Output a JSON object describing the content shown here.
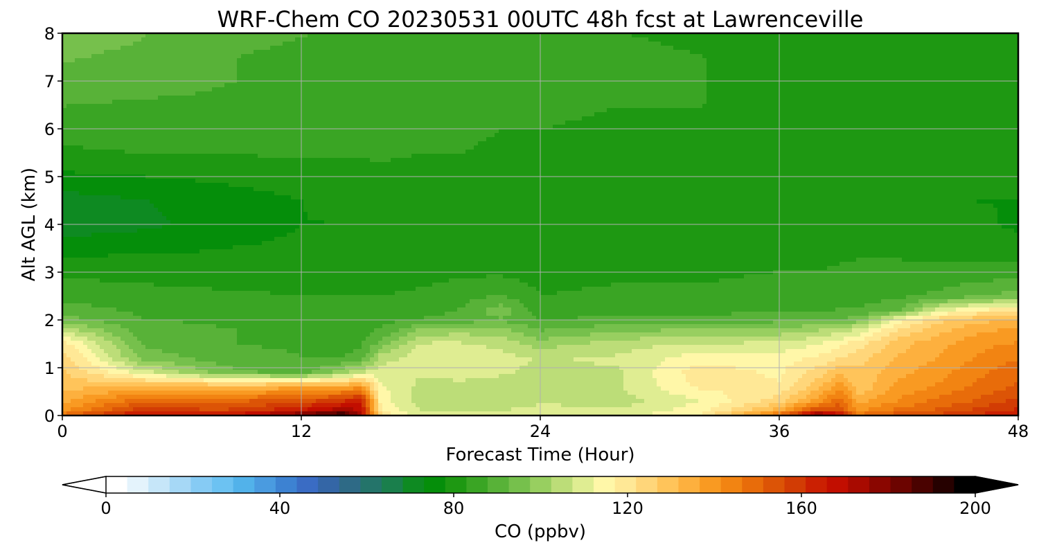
{
  "chart_data": {
    "type": "heatmap",
    "title": "WRF-Chem CO  20230531 00UTC 48h fcst at Lawrenceville",
    "xlabel": "Forecast Time (Hour)",
    "ylabel": "Alt AGL (km)",
    "xlim": [
      0,
      48
    ],
    "ylim": [
      0,
      8
    ],
    "xticks": [
      0,
      12,
      24,
      36,
      48
    ],
    "yticks": [
      0,
      1,
      2,
      3,
      4,
      5,
      6,
      7,
      8
    ],
    "grid": true,
    "colorbar": {
      "label": "CO  (ppbv)",
      "min": 0,
      "max": 200,
      "ticks": [
        0,
        40,
        80,
        120,
        160,
        200
      ],
      "extend": "both",
      "colors": [
        "#ffffff",
        "#e4f3fc",
        "#c6e6f9",
        "#a6d8f6",
        "#86cbf4",
        "#6cc2f2",
        "#52b2ea",
        "#4a9be0",
        "#3d82d2",
        "#3a6cc4",
        "#3466a6",
        "#2e6a86",
        "#24746a",
        "#1a7f4c",
        "#0e8a22",
        "#058e0a",
        "#1e9812",
        "#3aa524",
        "#58b238",
        "#76c04c",
        "#98cf60",
        "#bcdd78",
        "#dfed92",
        "#fff7a8",
        "#ffe896",
        "#ffd67a",
        "#ffc45a",
        "#fdb03e",
        "#f99a22",
        "#f28412",
        "#e86c0a",
        "#dc5406",
        "#d23c04",
        "#cb2002",
        "#c20e00",
        "#a80a00",
        "#8a0600",
        "#6c0400",
        "#4a0200",
        "#260100",
        "#000000"
      ]
    },
    "grid_values": {
      "x": [
        0,
        4,
        8,
        12,
        14,
        15,
        16,
        18,
        20,
        22,
        24,
        28,
        32,
        36,
        38,
        39,
        40,
        42,
        44,
        46,
        48
      ],
      "y": [
        0,
        0.1,
        0.3,
        0.6,
        0.9,
        1.2,
        1.5,
        1.8,
        2.0,
        2.2,
        2.5,
        3.0,
        3.5,
        4.0,
        4.5,
        5.0,
        5.5,
        6.0,
        6.5,
        7.0,
        7.5,
        8.0
      ],
      "z": [
        [
          150,
          170,
          165,
          185,
          196,
          172,
          122,
          110,
          110,
          110,
          113,
          110,
          118,
          150,
          185,
          170,
          150,
          155,
          158,
          162,
          165
        ],
        [
          140,
          160,
          156,
          166,
          175,
          170,
          118,
          107,
          107,
          107,
          110,
          108,
          115,
          135,
          158,
          155,
          140,
          148,
          152,
          158,
          162
        ],
        [
          135,
          150,
          150,
          154,
          160,
          165,
          115,
          105,
          105,
          104,
          106,
          105,
          112,
          125,
          140,
          150,
          135,
          142,
          148,
          152,
          158
        ],
        [
          130,
          133,
          133,
          135,
          137,
          140,
          113,
          106,
          106,
          105,
          107,
          107,
          118,
          118,
          130,
          140,
          128,
          138,
          142,
          148,
          152
        ],
        [
          128,
          110,
          95,
          90,
          100,
          107,
          110,
          108,
          109,
          108,
          106,
          107,
          120,
          116,
          125,
          130,
          128,
          135,
          140,
          145,
          150
        ],
        [
          125,
          96,
          90,
          88,
          88,
          90,
          105,
          110,
          111,
          109,
          107,
          108,
          115,
          115,
          118,
          122,
          125,
          132,
          137,
          142,
          146
        ],
        [
          120,
          92,
          88,
          87,
          86,
          87,
          95,
          108,
          108,
          106,
          100,
          105,
          108,
          108,
          112,
          116,
          120,
          130,
          135,
          140,
          142
        ],
        [
          105,
          90,
          88,
          87,
          86,
          86,
          88,
          98,
          100,
          99,
          92,
          96,
          98,
          99,
          102,
          104,
          108,
          122,
          130,
          135,
          138
        ],
        [
          95,
          88,
          87,
          86,
          85,
          85,
          86,
          88,
          90,
          92,
          88,
          89,
          90,
          91,
          92,
          93,
          95,
          115,
          125,
          130,
          132
        ],
        [
          90,
          87,
          86,
          85,
          84,
          84,
          85,
          86,
          88,
          96,
          85,
          86,
          86,
          87,
          87,
          88,
          88,
          92,
          110,
          118,
          120
        ],
        [
          86,
          85,
          84,
          83,
          83,
          83,
          83,
          84,
          86,
          88,
          83,
          84,
          84,
          85,
          85,
          86,
          86,
          87,
          89,
          92,
          95
        ],
        [
          82,
          81,
          80,
          80,
          80,
          80,
          80,
          81,
          82,
          82,
          81,
          82,
          82,
          83,
          83,
          84,
          84,
          84,
          84,
          85,
          85
        ],
        [
          76,
          77,
          78,
          79,
          79,
          79,
          79,
          80,
          80,
          80,
          80,
          80,
          80,
          81,
          81,
          81,
          82,
          82,
          81,
          81,
          80
        ],
        [
          70,
          72,
          75,
          78,
          78,
          78,
          79,
          79,
          79,
          79,
          80,
          79,
          79,
          79,
          79,
          79,
          80,
          80,
          79,
          79,
          77
        ],
        [
          71,
          73,
          76,
          78,
          79,
          79,
          79,
          79,
          79,
          79,
          80,
          79,
          79,
          79,
          79,
          79,
          79,
          79,
          79,
          78,
          78
        ],
        [
          77,
          78,
          79,
          80,
          80,
          80,
          81,
          81,
          81,
          80,
          80,
          81,
          81,
          80,
          80,
          80,
          80,
          80,
          80,
          79,
          79
        ],
        [
          82,
          83,
          83,
          84,
          84,
          84,
          84,
          83,
          83,
          82,
          82,
          82,
          81,
          81,
          81,
          81,
          81,
          81,
          80,
          80,
          80
        ],
        [
          85,
          86,
          86,
          86,
          86,
          86,
          85,
          84,
          84,
          83,
          83,
          82,
          82,
          82,
          81,
          81,
          81,
          80,
          80,
          80,
          80
        ],
        [
          88,
          87,
          87,
          87,
          86,
          86,
          85,
          85,
          85,
          84,
          84,
          83,
          83,
          82,
          82,
          82,
          81,
          81,
          80,
          80,
          80
        ],
        [
          92,
          90,
          88,
          87,
          86,
          86,
          86,
          86,
          86,
          85,
          85,
          84,
          83,
          82,
          82,
          82,
          81,
          81,
          81,
          80,
          80
        ],
        [
          93,
          92,
          88,
          87,
          86,
          86,
          86,
          86,
          86,
          85,
          85,
          84,
          83,
          82,
          82,
          81,
          81,
          81,
          81,
          81,
          80
        ],
        [
          94,
          93,
          89,
          88,
          87,
          86,
          86,
          86,
          86,
          85,
          84,
          83,
          82,
          81,
          81,
          81,
          81,
          81,
          81,
          80,
          80
        ]
      ]
    }
  }
}
